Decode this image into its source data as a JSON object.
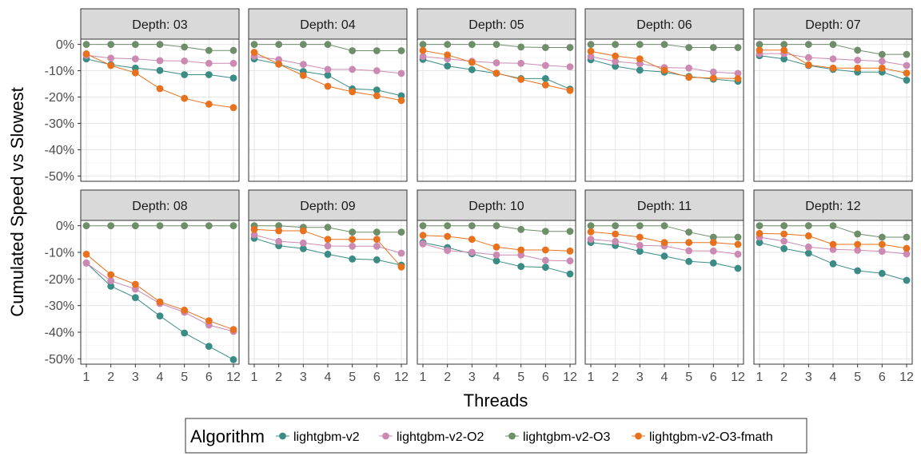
{
  "chart_data": {
    "type": "line",
    "ylabel": "Cumulated Speed vs Slowest",
    "xlabel": "Threads",
    "x": [
      "1",
      "2",
      "3",
      "4",
      "5",
      "6",
      "12"
    ],
    "yticks": [
      0,
      -10,
      -20,
      -30,
      -40,
      -50
    ],
    "ytick_labels": [
      "0%",
      "-10%",
      "-20%",
      "-30%",
      "-40%",
      "-50%"
    ],
    "ylim": [
      -52,
      2
    ],
    "grid": true,
    "legend": {
      "title": "Algorithm",
      "placement": "bottom",
      "entries": [
        "lightgbm-v2",
        "lightgbm-v2-O2",
        "lightgbm-v2-O3",
        "lightgbm-v2-O3-fmath"
      ]
    },
    "colors": {
      "lightgbm-v2": "#3a8c84",
      "lightgbm-v2-O2": "#cc8ab2",
      "lightgbm-v2-O3": "#6e8e6a",
      "lightgbm-v2-O3-fmath": "#e8711e"
    },
    "panels": [
      {
        "title": "Depth: 03",
        "series": [
          {
            "name": "lightgbm-v2",
            "values": [
              -5.5,
              -7.7,
              -9,
              -9.9,
              -11.5,
              -11.5,
              -12.8
            ]
          },
          {
            "name": "lightgbm-v2-O2",
            "values": [
              -4.2,
              -5.2,
              -5.5,
              -6.2,
              -6.3,
              -7.2,
              -7.2
            ]
          },
          {
            "name": "lightgbm-v2-O3",
            "values": [
              0,
              0,
              0,
              0,
              -1,
              -2.3,
              -2.3
            ]
          },
          {
            "name": "lightgbm-v2-O3-fmath",
            "values": [
              -3.6,
              -8,
              -10.8,
              -16.8,
              -20.5,
              -22.7,
              -24
            ]
          }
        ]
      },
      {
        "title": "Depth: 04",
        "series": [
          {
            "name": "lightgbm-v2",
            "values": [
              -5.5,
              -7.5,
              -10.3,
              -11.7,
              -16.9,
              -17.3,
              -19.5
            ]
          },
          {
            "name": "lightgbm-v2-O2",
            "values": [
              -4.5,
              -5.8,
              -7.6,
              -9.5,
              -9.5,
              -10,
              -11
            ]
          },
          {
            "name": "lightgbm-v2-O3",
            "values": [
              0,
              0,
              0,
              0,
              -2.4,
              -2.4,
              -2.4
            ]
          },
          {
            "name": "lightgbm-v2-O3-fmath",
            "values": [
              -3,
              -7.5,
              -11.8,
              -15.9,
              -18,
              -19.5,
              -21.3
            ]
          }
        ]
      },
      {
        "title": "Depth: 05",
        "series": [
          {
            "name": "lightgbm-v2",
            "values": [
              -5.7,
              -8.2,
              -9.6,
              -11,
              -13,
              -13,
              -17
            ]
          },
          {
            "name": "lightgbm-v2-O2",
            "values": [
              -4.6,
              -5.5,
              -6.4,
              -7,
              -7.2,
              -8,
              -8.5
            ]
          },
          {
            "name": "lightgbm-v2-O3",
            "values": [
              0,
              0,
              0,
              0,
              -1,
              -1.2,
              -1.2
            ]
          },
          {
            "name": "lightgbm-v2-O3-fmath",
            "values": [
              -2.3,
              -4,
              -6.8,
              -10.9,
              -13.3,
              -15.4,
              -17.5
            ]
          }
        ]
      },
      {
        "title": "Depth: 06",
        "series": [
          {
            "name": "lightgbm-v2",
            "values": [
              -5.8,
              -8.3,
              -9.8,
              -10.5,
              -12.2,
              -13.2,
              -14
            ]
          },
          {
            "name": "lightgbm-v2-O2",
            "values": [
              -4.6,
              -6.5,
              -7.3,
              -8.8,
              -9,
              -10.5,
              -11
            ]
          },
          {
            "name": "lightgbm-v2-O3",
            "values": [
              0,
              0,
              0,
              0,
              -1.2,
              -1.2,
              -1.2
            ]
          },
          {
            "name": "lightgbm-v2-O3-fmath",
            "values": [
              -2.6,
              -4.4,
              -5.5,
              -9.8,
              -12.5,
              -12.8,
              -13
            ]
          }
        ]
      },
      {
        "title": "Depth: 07",
        "series": [
          {
            "name": "lightgbm-v2",
            "values": [
              -4.3,
              -5.5,
              -8,
              -9.5,
              -10.5,
              -10.5,
              -13.6
            ]
          },
          {
            "name": "lightgbm-v2-O2",
            "values": [
              -3.5,
              -3.5,
              -5,
              -5.5,
              -6,
              -6.4,
              -8
            ]
          },
          {
            "name": "lightgbm-v2-O3",
            "values": [
              0,
              0,
              0,
              0,
              -2.2,
              -3.8,
              -3.8
            ]
          },
          {
            "name": "lightgbm-v2-O3-fmath",
            "values": [
              -2.2,
              -2.2,
              -7.8,
              -9,
              -9,
              -9,
              -10.9
            ]
          }
        ]
      },
      {
        "title": "Depth: 08",
        "series": [
          {
            "name": "lightgbm-v2",
            "values": [
              -14,
              -22.7,
              -27,
              -33.9,
              -40.3,
              -45.3,
              -50.3
            ]
          },
          {
            "name": "lightgbm-v2-O2",
            "values": [
              -14,
              -20.7,
              -23.8,
              -29.2,
              -32.5,
              -37.3,
              -39.7
            ]
          },
          {
            "name": "lightgbm-v2-O3",
            "values": [
              0,
              0,
              0,
              0,
              0,
              0,
              0
            ]
          },
          {
            "name": "lightgbm-v2-O3-fmath",
            "values": [
              -10.7,
              -18.4,
              -22,
              -28.6,
              -31.7,
              -35.7,
              -39
            ]
          }
        ]
      },
      {
        "title": "Depth: 09",
        "series": [
          {
            "name": "lightgbm-v2",
            "values": [
              -4.7,
              -7.5,
              -8.6,
              -10.7,
              -12.5,
              -12.8,
              -14.8
            ]
          },
          {
            "name": "lightgbm-v2-O2",
            "values": [
              -3.4,
              -5.9,
              -6.5,
              -7.6,
              -7.7,
              -7.7,
              -10.3
            ]
          },
          {
            "name": "lightgbm-v2-O3",
            "values": [
              0,
              0,
              -0.6,
              -0.6,
              -2.4,
              -2.4,
              -2.4
            ]
          },
          {
            "name": "lightgbm-v2-O3-fmath",
            "values": [
              -1.4,
              -1.9,
              -1.9,
              -5.1,
              -5.1,
              -5.1,
              -15.5
            ]
          }
        ]
      },
      {
        "title": "Depth: 10",
        "series": [
          {
            "name": "lightgbm-v2",
            "values": [
              -6.3,
              -8.2,
              -10.5,
              -13.2,
              -15.3,
              -15.6,
              -18.1
            ]
          },
          {
            "name": "lightgbm-v2-O2",
            "values": [
              -6.8,
              -9.3,
              -10,
              -11,
              -11,
              -13,
              -13.2
            ]
          },
          {
            "name": "lightgbm-v2-O3",
            "values": [
              0,
              0,
              0,
              0,
              -1.4,
              -2.1,
              -2.1
            ]
          },
          {
            "name": "lightgbm-v2-O3-fmath",
            "values": [
              -3.6,
              -4,
              -5.1,
              -8,
              -9.1,
              -9.1,
              -9.5
            ]
          }
        ]
      },
      {
        "title": "Depth: 11",
        "series": [
          {
            "name": "lightgbm-v2",
            "values": [
              -6.3,
              -7.4,
              -9.6,
              -11.4,
              -13.4,
              -14,
              -16
            ]
          },
          {
            "name": "lightgbm-v2-O2",
            "values": [
              -5.1,
              -5.9,
              -7.4,
              -7.6,
              -9.4,
              -9.5,
              -10.7
            ]
          },
          {
            "name": "lightgbm-v2-O3",
            "values": [
              0,
              0,
              0,
              0,
              -2.4,
              -4.3,
              -4.3
            ]
          },
          {
            "name": "lightgbm-v2-O3-fmath",
            "values": [
              -2.3,
              -3.1,
              -4.3,
              -6.3,
              -6.3,
              -6.3,
              -7
            ]
          }
        ]
      },
      {
        "title": "Depth: 12",
        "series": [
          {
            "name": "lightgbm-v2",
            "values": [
              -6.3,
              -8.6,
              -10.3,
              -14.3,
              -16.9,
              -17.9,
              -20.5
            ]
          },
          {
            "name": "lightgbm-v2-O2",
            "values": [
              -4.3,
              -5.8,
              -8,
              -8.9,
              -9.2,
              -9.6,
              -10.6
            ]
          },
          {
            "name": "lightgbm-v2-O3",
            "values": [
              0,
              0,
              0,
              0,
              -3.1,
              -4.3,
              -4.3
            ]
          },
          {
            "name": "lightgbm-v2-O3-fmath",
            "values": [
              -2.9,
              -3.1,
              -3.8,
              -7,
              -7,
              -7,
              -8.5
            ]
          }
        ]
      }
    ]
  }
}
